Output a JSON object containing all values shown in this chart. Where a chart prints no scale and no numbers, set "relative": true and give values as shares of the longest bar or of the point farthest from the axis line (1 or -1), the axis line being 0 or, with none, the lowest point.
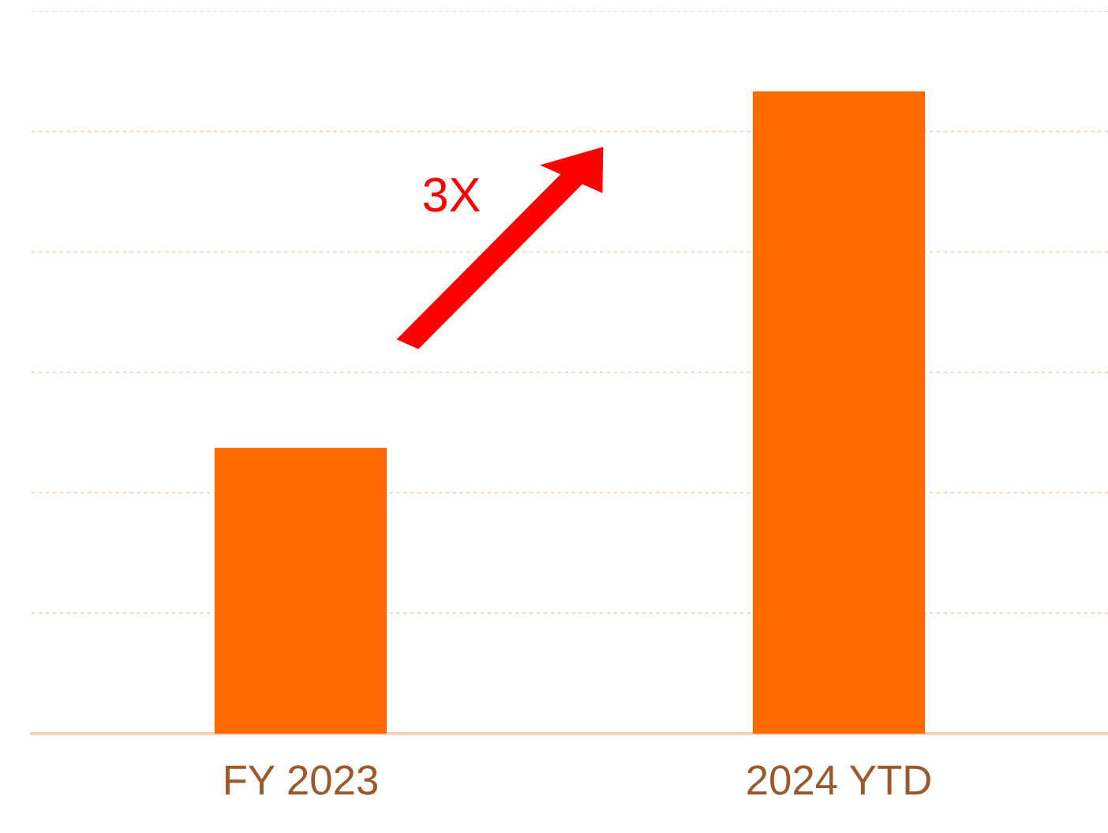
{
  "chart_data": {
    "type": "bar",
    "relative": true,
    "categories": [
      "FY 2023",
      "2024 YTD"
    ],
    "values": [
      0.445,
      1
    ],
    "color": "#ff6a00",
    "grid": "y",
    "annotations": [
      "3X"
    ]
  }
}
